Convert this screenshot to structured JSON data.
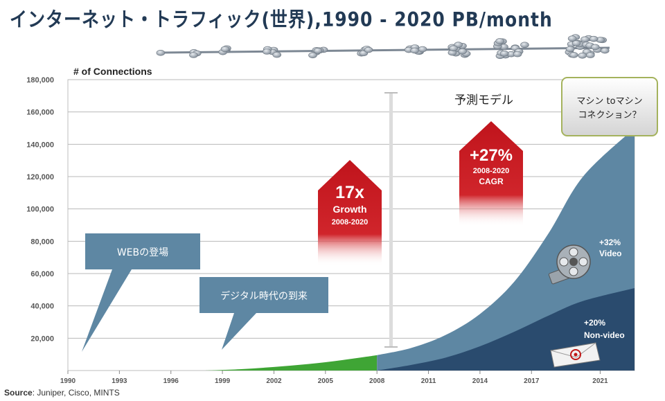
{
  "title": "インターネット・トラフィック(世界),1990 - 2020 PB/month",
  "source_label": "Source",
  "source_text": ": Juniper, Cisco, MINTS",
  "chart_data": {
    "type": "area",
    "ylabel": "# of Connections",
    "ylim": [
      0,
      180000
    ],
    "yticks": [
      "20,000",
      "40,000",
      "60,000",
      "80,000",
      "100,000",
      "120,000",
      "140,000",
      "160,000",
      "180,000"
    ],
    "xlim": [
      1990,
      2023
    ],
    "xticks": [
      "1990",
      "1993",
      "1996",
      "1999",
      "2002",
      "2005",
      "2008",
      "2011",
      "2014",
      "2017",
      "2021"
    ],
    "grid": true,
    "series": [
      {
        "name": "",
        "segment": "historical",
        "color": "#3fa535",
        "x": [
          1998,
          2000,
          2002,
          2004,
          2006,
          2008
        ],
        "values": [
          0,
          800,
          2200,
          4000,
          6500,
          9500
        ]
      },
      {
        "name": "Video",
        "segment": "forecast-video",
        "color": "#5e87a3",
        "x": [
          2008,
          2010,
          2012,
          2014,
          2016,
          2018,
          2020,
          2023
        ],
        "values": [
          9500,
          14000,
          22000,
          35000,
          55000,
          85000,
          120000,
          150000
        ]
      },
      {
        "name": "Non-video",
        "segment": "forecast-nonvideo",
        "color": "#2a4b6e",
        "x": [
          2008,
          2010,
          2012,
          2014,
          2016,
          2018,
          2020,
          2023
        ],
        "values": [
          0,
          3500,
          8000,
          15000,
          24000,
          34000,
          43000,
          51000
        ]
      }
    ],
    "forecast_start": 2008,
    "annotations": {
      "forecast_label": "予測モデル",
      "growth_big": "17x",
      "growth_word": "Growth",
      "growth_years": "2008-2020",
      "cagr_big": "+27%",
      "cagr_years": "2008-2020",
      "cagr_word": "CAGR",
      "video_pct": "+32%",
      "video_word": "Video",
      "nonvideo_pct": "+20%",
      "nonvideo_word": "Non-video",
      "web_callout": "WEBの登場",
      "digital_callout": "デジタル時代の到来",
      "m2m_line1": "マシン toマシン",
      "m2m_line2": "コネクション？"
    }
  }
}
